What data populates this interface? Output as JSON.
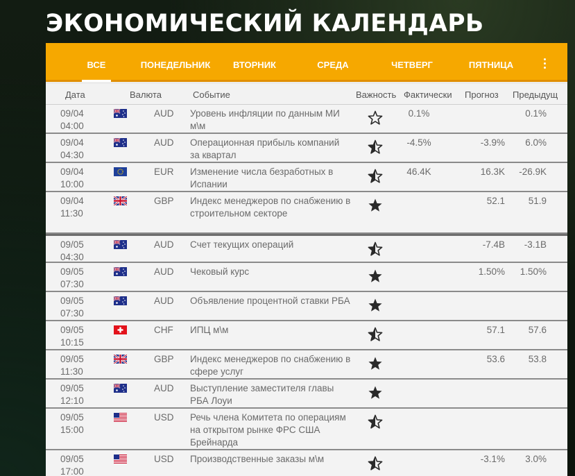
{
  "page": {
    "title": "ЭКОНОМИЧЕСКИЙ КАЛЕНДАРЬ"
  },
  "tabs": [
    {
      "label": "ВСЕ",
      "active": true
    },
    {
      "label": "ПОНЕДЕЛЬНИК"
    },
    {
      "label": "ВТОРНИК"
    },
    {
      "label": "СРЕДА"
    },
    {
      "label": "ЧЕТВЕРГ"
    },
    {
      "label": "ПЯТНИЦА"
    }
  ],
  "menu_icon": "kebab-menu-icon",
  "columns": {
    "date": "Дата",
    "currency": "Валюта",
    "event": "Событие",
    "importance": "Важность",
    "actual": "Фактически",
    "forecast": "Прогноз",
    "previous": "Предыдущ"
  },
  "colors": {
    "accent": "#f6a800",
    "star": "#2a2a2a",
    "text": "#6a6a6a"
  },
  "events": [
    {
      "date": "09/04",
      "time": "04:00",
      "flag": "au",
      "currency": "AUD",
      "event": "Уровень инфляции по данным МИ м\\м",
      "importance": "low",
      "actual": "0.1%",
      "forecast": "",
      "previous": "0.1%"
    },
    {
      "date": "09/04",
      "time": "04:30",
      "flag": "au",
      "currency": "AUD",
      "event": "Операционная прибыль компаний за квартал",
      "importance": "medium",
      "actual": "-4.5%",
      "forecast": "-3.9%",
      "previous": "6.0%"
    },
    {
      "date": "09/04",
      "time": "10:00",
      "flag": "eu",
      "currency": "EUR",
      "event": "Изменение числа безработных в Испании",
      "importance": "medium",
      "actual": "46.4K",
      "forecast": "16.3K",
      "previous": "-26.9K"
    },
    {
      "date": "09/04",
      "time": "11:30",
      "flag": "gb",
      "currency": "GBP",
      "event": "Индекс менеджеров по снабжению в строительном секторе",
      "importance": "high",
      "actual": "",
      "forecast": "52.1",
      "previous": "51.9"
    },
    {
      "date": "09/05",
      "time": "04:30",
      "flag": "au",
      "currency": "AUD",
      "event": "Счет текущих операций",
      "importance": "medium",
      "actual": "",
      "forecast": "-7.4B",
      "previous": "-3.1B",
      "separator": true
    },
    {
      "date": "09/05",
      "time": "07:30",
      "flag": "au",
      "currency": "AUD",
      "event": "Чековый курс",
      "importance": "high",
      "actual": "",
      "forecast": "1.50%",
      "previous": "1.50%"
    },
    {
      "date": "09/05",
      "time": "07:30",
      "flag": "au",
      "currency": "AUD",
      "event": "Объявление процентной ставки РБА",
      "importance": "high",
      "actual": "",
      "forecast": "",
      "previous": ""
    },
    {
      "date": "09/05",
      "time": "10:15",
      "flag": "ch",
      "currency": "CHF",
      "event": "ИПЦ м\\м",
      "importance": "medium",
      "actual": "",
      "forecast": "57.1",
      "previous": "57.6"
    },
    {
      "date": "09/05",
      "time": "11:30",
      "flag": "gb",
      "currency": "GBP",
      "event": "Индекс менеджеров по снабжению в сфере услуг",
      "importance": "high",
      "actual": "",
      "forecast": "53.6",
      "previous": "53.8"
    },
    {
      "date": "09/05",
      "time": "12:10",
      "flag": "au",
      "currency": "AUD",
      "event": "Выступление заместителя главы РБА Лоуи",
      "importance": "high",
      "actual": "",
      "forecast": "",
      "previous": ""
    },
    {
      "date": "09/05",
      "time": "15:00",
      "flag": "us",
      "currency": "USD",
      "event": "Речь члена Комитета по операциям на открытом рынке ФРС США Брейнарда",
      "importance": "medium",
      "actual": "",
      "forecast": "",
      "previous": ""
    },
    {
      "date": "09/05",
      "time": "17:00",
      "flag": "us",
      "currency": "USD",
      "event": "Производственные заказы м\\м",
      "importance": "medium",
      "actual": "",
      "forecast": "-3.1%",
      "previous": "3.0%"
    }
  ]
}
